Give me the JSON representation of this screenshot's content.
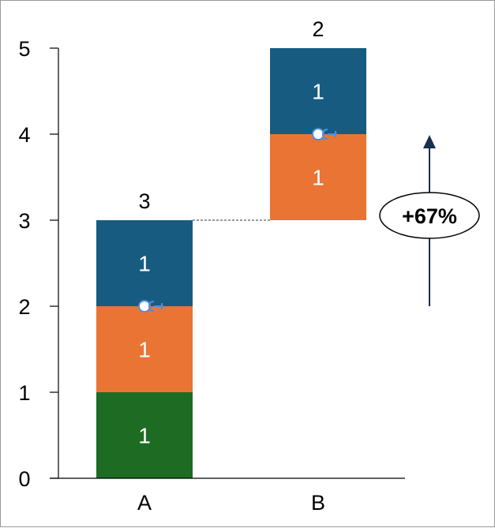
{
  "chart_data": {
    "type": "bar",
    "stacked": true,
    "categories": [
      "A",
      "B"
    ],
    "ylim": [
      0,
      5
    ],
    "yticks": [
      "0",
      "1",
      "2",
      "3",
      "4",
      "5"
    ],
    "base_offsets": [
      0,
      3
    ],
    "series": [
      {
        "color": "#1e6b24",
        "values": [
          1,
          0
        ],
        "labels": [
          "1",
          ""
        ]
      },
      {
        "color": "#ea7434",
        "values": [
          1,
          1
        ],
        "labels": [
          "1",
          "1"
        ]
      },
      {
        "color": "#175c80",
        "values": [
          1,
          1
        ],
        "labels": [
          "1",
          "1"
        ]
      }
    ],
    "totals": [
      "3",
      "2"
    ],
    "connector_line": {
      "from_category": "A",
      "to_category": "B",
      "value": 3
    },
    "difference_arrow": {
      "from_category": "A",
      "from_value": 2,
      "to_category": "B",
      "to_value": 4,
      "label": "+67%",
      "color": "#4a8fe0",
      "arrowhead_color": "#1b2f4f"
    },
    "grid": false,
    "legend": "none"
  }
}
